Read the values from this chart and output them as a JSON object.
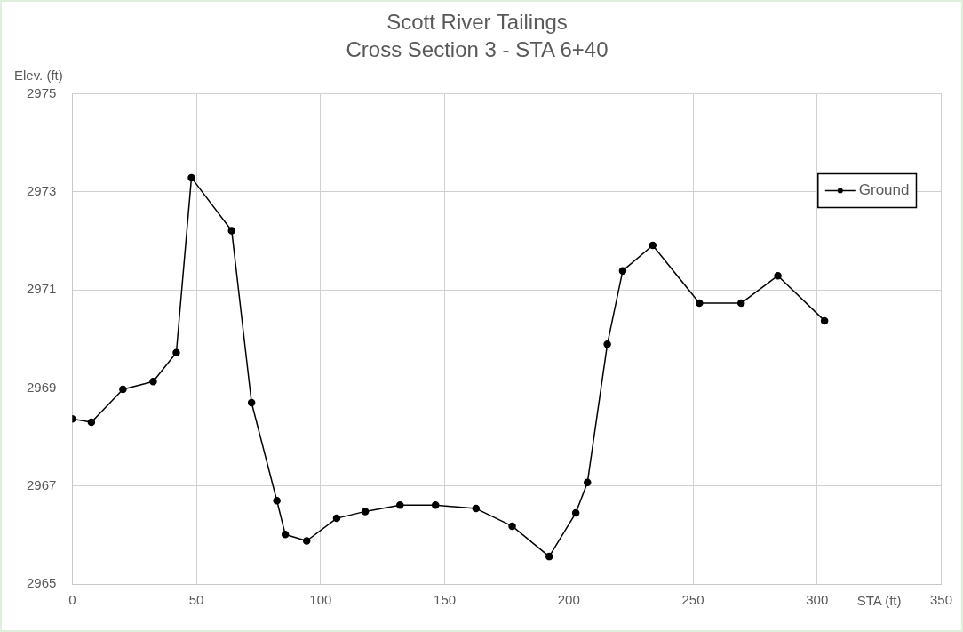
{
  "chart_data": {
    "type": "line",
    "title": "Scott River Tailings",
    "subtitle": "Cross Section 3 - STA 6+40",
    "xlabel": "STA (ft)",
    "ylabel": "Elev. (ft)",
    "series": [
      {
        "name": "Ground",
        "color": "#000000",
        "x": [
          0,
          7.7,
          20.4,
          32.6,
          41.9,
          48.0,
          64.2,
          72.2,
          82.4,
          85.8,
          94.4,
          106.5,
          118.0,
          132.0,
          146.3,
          162.6,
          177.2,
          192.1,
          202.8,
          207.5,
          215.5,
          221.7,
          233.8,
          252.6,
          269.4,
          284.2,
          303.0
        ],
        "values": [
          2968.37,
          2968.3,
          2968.97,
          2969.13,
          2969.72,
          2973.29,
          2972.21,
          2968.7,
          2966.7,
          2966.01,
          2965.88,
          2966.34,
          2966.48,
          2966.61,
          2966.61,
          2966.54,
          2966.18,
          2965.56,
          2966.45,
          2967.07,
          2969.89,
          2971.39,
          2971.91,
          2970.73,
          2970.73,
          2971.29,
          2970.37
        ]
      }
    ],
    "xlim": [
      0,
      350
    ],
    "xticks": [
      0,
      50,
      100,
      150,
      200,
      250,
      300,
      350
    ],
    "ylim": [
      2965,
      2975
    ],
    "yticks": [
      2965,
      2967,
      2969,
      2971,
      2973,
      2975
    ],
    "grid": true,
    "legend": "top right",
    "marker": "circle",
    "line_style": "solid"
  }
}
